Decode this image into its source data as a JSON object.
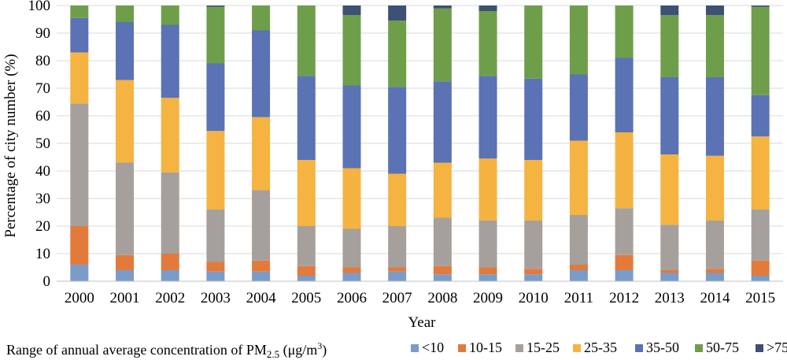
{
  "chart_data": {
    "type": "bar",
    "stacked": true,
    "xlabel": "Year",
    "ylabel": "Percentage of city number (%)",
    "ylim": [
      0,
      100
    ],
    "yticks": [
      0,
      10,
      20,
      30,
      40,
      50,
      60,
      70,
      80,
      90,
      100
    ],
    "grid": true,
    "legend_position": "bottom",
    "legend_title": {
      "prefix": "Range of annual average concentration of PM",
      "subscript": "2.5",
      "suffix": " (μg/m",
      "superscript": "3",
      "end": ")"
    },
    "categories": [
      "2000",
      "2001",
      "2002",
      "2003",
      "2004",
      "2005",
      "2006",
      "2007",
      "2008",
      "2009",
      "2010",
      "2011",
      "2012",
      "2013",
      "2014",
      "2015"
    ],
    "series": [
      {
        "name": "<10",
        "color": "#7b9cc9",
        "values": [
          6,
          4,
          4,
          3.5,
          3.5,
          2,
          3,
          3.5,
          2.5,
          2.5,
          2.5,
          4,
          4,
          3,
          3,
          2
        ]
      },
      {
        "name": "10-15",
        "color": "#e27a3c",
        "values": [
          14,
          5.5,
          6,
          3.5,
          4,
          3.5,
          2,
          1.5,
          3,
          2.5,
          2,
          2,
          5.5,
          1,
          1.5,
          5.5
        ]
      },
      {
        "name": "15-25",
        "color": "#a6a09c",
        "values": [
          44.5,
          33.5,
          29.5,
          19,
          25.5,
          14.5,
          14,
          15,
          17.5,
          17,
          17.5,
          18,
          17,
          16.5,
          17.5,
          18.5
        ]
      },
      {
        "name": "25-35",
        "color": "#f5b342",
        "values": [
          18.5,
          30,
          27,
          28.5,
          26.5,
          24,
          22,
          19,
          20,
          22.5,
          22,
          27,
          27.5,
          25.5,
          23.5,
          26.5
        ]
      },
      {
        "name": "35-50",
        "color": "#5b72b4",
        "values": [
          12.5,
          21,
          26.5,
          24.5,
          31.5,
          30.5,
          30,
          31.5,
          29.5,
          30,
          29.5,
          24,
          27,
          28,
          28.5,
          15
        ]
      },
      {
        "name": "50-75",
        "color": "#6f9e4b",
        "values": [
          4.5,
          6,
          7,
          20.5,
          9,
          25.5,
          25.5,
          24,
          26.5,
          23.5,
          26.5,
          25,
          19,
          22.5,
          22.5,
          32
        ]
      },
      {
        "name": ">75",
        "color": "#3e5073",
        "values": [
          0,
          0,
          0,
          0.5,
          0,
          0,
          3.5,
          5.5,
          1,
          2,
          0,
          0,
          0,
          3.5,
          3.5,
          0.5
        ]
      }
    ]
  }
}
